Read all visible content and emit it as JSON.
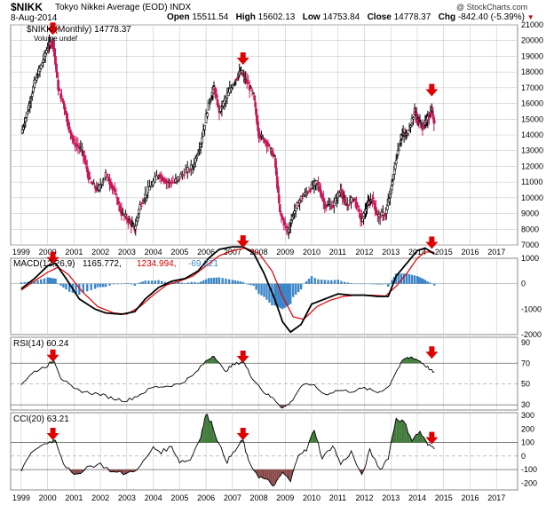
{
  "header": {
    "symbol": "$NIKK",
    "name": "Tokyo Nikkei Average (EOD)",
    "exchange": "INDX",
    "date": "8-Aug-2014",
    "open_label": "Open",
    "open": "15511.54",
    "high_label": "High",
    "high": "15602.13",
    "low_label": "Low",
    "low": "14753.84",
    "close_label": "Close",
    "close": "14778.37",
    "chg_label": "Chg",
    "chg": "-842.40 (-5.39%)",
    "brand": "@ StockCharts.com"
  },
  "colors": {
    "up": "#000000",
    "down": "#c8185a",
    "macd_line": "#000000",
    "signal_line": "#e00000",
    "histogram": "#3a86c8",
    "arrow": "#e00000",
    "rsi_fill": "#3f7a3a",
    "cci_fill_pos": "#3f7a3a",
    "cci_fill_neg": "#8a4a4a",
    "grid": "#c8c8c8"
  },
  "chart_data": [
    {
      "type": "candlestick",
      "legend": "$NIKK (Monthly) 14778.37",
      "legend_volume": "Volume undef",
      "x": [
        1999,
        2000,
        2001,
        2002,
        2003,
        2004,
        2005,
        2006,
        2007,
        2008,
        2009,
        2010,
        2011,
        2012,
        2013,
        2014,
        2015,
        2016,
        2017
      ],
      "ylim": [
        7000,
        21000
      ],
      "yticks": [
        7000,
        8000,
        9000,
        10000,
        11000,
        12000,
        13000,
        14000,
        15000,
        16000,
        17000,
        18000,
        19000,
        20000,
        21000
      ],
      "close": [
        [
          1999.0,
          14100
        ],
        [
          1999.25,
          15600
        ],
        [
          1999.5,
          17300
        ],
        [
          1999.75,
          18400
        ],
        [
          2000.0,
          19600
        ],
        [
          2000.2,
          20000
        ],
        [
          2000.4,
          17000
        ],
        [
          2000.6,
          16000
        ],
        [
          2000.8,
          14500
        ],
        [
          2001.0,
          13500
        ],
        [
          2001.3,
          13000
        ],
        [
          2001.6,
          11000
        ],
        [
          2001.9,
          10500
        ],
        [
          2002.2,
          11500
        ],
        [
          2002.5,
          10500
        ],
        [
          2002.8,
          9000
        ],
        [
          2003.1,
          8500
        ],
        [
          2003.3,
          8000
        ],
        [
          2003.5,
          9500
        ],
        [
          2003.8,
          10500
        ],
        [
          2004.2,
          11500
        ],
        [
          2004.5,
          11000
        ],
        [
          2004.8,
          11000
        ],
        [
          2005.1,
          11500
        ],
        [
          2005.5,
          12000
        ],
        [
          2005.8,
          13500
        ],
        [
          2006.1,
          16000
        ],
        [
          2006.3,
          17000
        ],
        [
          2006.5,
          15500
        ],
        [
          2006.8,
          16500
        ],
        [
          2007.1,
          17500
        ],
        [
          2007.3,
          18000
        ],
        [
          2007.5,
          17500
        ],
        [
          2007.8,
          16500
        ],
        [
          2008.0,
          14000
        ],
        [
          2008.3,
          13500
        ],
        [
          2008.6,
          12500
        ],
        [
          2008.8,
          9000
        ],
        [
          2009.1,
          7800
        ],
        [
          2009.3,
          9000
        ],
        [
          2009.6,
          10000
        ],
        [
          2009.9,
          10500
        ],
        [
          2010.2,
          11000
        ],
        [
          2010.5,
          9500
        ],
        [
          2010.8,
          9500
        ],
        [
          2011.1,
          10500
        ],
        [
          2011.3,
          9500
        ],
        [
          2011.6,
          10000
        ],
        [
          2011.9,
          8500
        ],
        [
          2012.1,
          9500
        ],
        [
          2012.3,
          10000
        ],
        [
          2012.5,
          8800
        ],
        [
          2012.8,
          9000
        ],
        [
          2013.0,
          10500
        ],
        [
          2013.2,
          12500
        ],
        [
          2013.4,
          14000
        ],
        [
          2013.6,
          14000
        ],
        [
          2013.9,
          15500
        ],
        [
          2014.0,
          15000
        ],
        [
          2014.2,
          14500
        ],
        [
          2014.4,
          15000
        ],
        [
          2014.55,
          15600
        ],
        [
          2014.65,
          14778
        ]
      ],
      "arrows_at": [
        2000.2,
        2007.4,
        2014.55
      ]
    },
    {
      "type": "line",
      "legend": [
        "MACD(12,26,9)",
        "1165.772,",
        "1234.994,",
        "-69.221"
      ],
      "ylim": [
        -2000,
        1000
      ],
      "yticks": [
        -2000,
        -1000,
        0,
        1000
      ],
      "series": [
        {
          "name": "MACD",
          "values": [
            [
              1999.0,
              -200
            ],
            [
              1999.5,
              200
            ],
            [
              2000.0,
              700
            ],
            [
              2000.3,
              800
            ],
            [
              2000.7,
              200
            ],
            [
              2001.2,
              -600
            ],
            [
              2001.8,
              -1000
            ],
            [
              2002.2,
              -1150
            ],
            [
              2002.8,
              -1200
            ],
            [
              2003.3,
              -1100
            ],
            [
              2003.7,
              -600
            ],
            [
              2004.2,
              -150
            ],
            [
              2004.7,
              100
            ],
            [
              2005.2,
              200
            ],
            [
              2005.7,
              500
            ],
            [
              2006.1,
              1000
            ],
            [
              2006.5,
              1350
            ],
            [
              2007.0,
              1450
            ],
            [
              2007.4,
              1450
            ],
            [
              2007.8,
              1200
            ],
            [
              2008.2,
              400
            ],
            [
              2008.6,
              -600
            ],
            [
              2008.9,
              -1500
            ],
            [
              2009.2,
              -1900
            ],
            [
              2009.6,
              -1600
            ],
            [
              2010.0,
              -800
            ],
            [
              2010.5,
              -600
            ],
            [
              2011.0,
              -400
            ],
            [
              2011.5,
              -450
            ],
            [
              2012.0,
              -450
            ],
            [
              2012.5,
              -500
            ],
            [
              2012.9,
              -500
            ],
            [
              2013.2,
              300
            ],
            [
              2013.6,
              800
            ],
            [
              2014.0,
              1300
            ],
            [
              2014.3,
              1400
            ],
            [
              2014.65,
              1166
            ]
          ]
        },
        {
          "name": "Signal",
          "values": [
            [
              1999.0,
              -250
            ],
            [
              1999.5,
              100
            ],
            [
              2000.0,
              450
            ],
            [
              2000.4,
              650
            ],
            [
              2000.8,
              350
            ],
            [
              2001.3,
              -300
            ],
            [
              2001.9,
              -900
            ],
            [
              2002.5,
              -1150
            ],
            [
              2003.0,
              -1200
            ],
            [
              2003.5,
              -900
            ],
            [
              2004.0,
              -450
            ],
            [
              2004.5,
              -50
            ],
            [
              2005.0,
              100
            ],
            [
              2005.5,
              300
            ],
            [
              2006.0,
              700
            ],
            [
              2006.5,
              1100
            ],
            [
              2007.0,
              1300
            ],
            [
              2007.5,
              1400
            ],
            [
              2008.0,
              1200
            ],
            [
              2008.5,
              500
            ],
            [
              2008.9,
              -500
            ],
            [
              2009.3,
              -1300
            ],
            [
              2009.7,
              -1400
            ],
            [
              2010.2,
              -900
            ],
            [
              2010.7,
              -650
            ],
            [
              2011.2,
              -500
            ],
            [
              2011.7,
              -450
            ],
            [
              2012.2,
              -450
            ],
            [
              2012.8,
              -480
            ],
            [
              2013.2,
              -100
            ],
            [
              2013.6,
              400
            ],
            [
              2014.0,
              1000
            ],
            [
              2014.3,
              1250
            ],
            [
              2014.65,
              1235
            ]
          ]
        }
      ],
      "arrows_at": [
        2000.2,
        2007.4,
        2014.55
      ]
    },
    {
      "type": "line",
      "legend": "RSI(14) 60.24",
      "ylim": [
        25,
        95
      ],
      "yticks": [
        30,
        50,
        70,
        90
      ],
      "overbought": 70,
      "oversold": 30,
      "values": [
        [
          1999.0,
          50
        ],
        [
          1999.5,
          62
        ],
        [
          2000.0,
          68
        ],
        [
          2000.25,
          73
        ],
        [
          2000.5,
          56
        ],
        [
          2001.0,
          45
        ],
        [
          2001.5,
          42
        ],
        [
          2002.0,
          40
        ],
        [
          2002.5,
          36
        ],
        [
          2003.0,
          34
        ],
        [
          2003.5,
          40
        ],
        [
          2004.0,
          47
        ],
        [
          2004.5,
          48
        ],
        [
          2005.0,
          50
        ],
        [
          2005.5,
          58
        ],
        [
          2006.0,
          72
        ],
        [
          2006.3,
          78
        ],
        [
          2006.7,
          62
        ],
        [
          2007.0,
          68
        ],
        [
          2007.4,
          72
        ],
        [
          2007.7,
          58
        ],
        [
          2008.2,
          42
        ],
        [
          2008.6,
          35
        ],
        [
          2008.9,
          27
        ],
        [
          2009.2,
          32
        ],
        [
          2009.6,
          48
        ],
        [
          2010.0,
          50
        ],
        [
          2010.5,
          40
        ],
        [
          2011.0,
          44
        ],
        [
          2011.5,
          43
        ],
        [
          2012.0,
          46
        ],
        [
          2012.5,
          42
        ],
        [
          2012.9,
          47
        ],
        [
          2013.2,
          62
        ],
        [
          2013.5,
          74
        ],
        [
          2013.8,
          76
        ],
        [
          2014.1,
          72
        ],
        [
          2014.4,
          66
        ],
        [
          2014.65,
          60.24
        ]
      ],
      "arrows_at": [
        2000.2,
        2007.4,
        2014.55
      ]
    },
    {
      "type": "line",
      "legend": "CCI(20) 63.21",
      "ylim": [
        -250,
        320
      ],
      "yticks": [
        -200,
        -100,
        0,
        100,
        200,
        300
      ],
      "values": [
        [
          1999.0,
          -100
        ],
        [
          1999.5,
          50
        ],
        [
          2000.0,
          100
        ],
        [
          2000.3,
          120
        ],
        [
          2000.6,
          -50
        ],
        [
          2001.0,
          -150
        ],
        [
          2001.5,
          -80
        ],
        [
          2002.0,
          -60
        ],
        [
          2002.5,
          -120
        ],
        [
          2003.0,
          -130
        ],
        [
          2003.5,
          -80
        ],
        [
          2004.0,
          60
        ],
        [
          2004.3,
          30
        ],
        [
          2004.7,
          70
        ],
        [
          2005.0,
          -40
        ],
        [
          2005.4,
          -30
        ],
        [
          2005.8,
          150
        ],
        [
          2006.0,
          310
        ],
        [
          2006.2,
          250
        ],
        [
          2006.5,
          80
        ],
        [
          2006.8,
          -40
        ],
        [
          2007.1,
          40
        ],
        [
          2007.4,
          120
        ],
        [
          2007.6,
          -40
        ],
        [
          2008.0,
          -150
        ],
        [
          2008.3,
          -180
        ],
        [
          2008.6,
          -220
        ],
        [
          2008.9,
          -120
        ],
        [
          2009.2,
          -190
        ],
        [
          2009.5,
          20
        ],
        [
          2009.8,
          40
        ],
        [
          2010.1,
          200
        ],
        [
          2010.4,
          -20
        ],
        [
          2010.8,
          80
        ],
        [
          2011.1,
          -60
        ],
        [
          2011.5,
          30
        ],
        [
          2011.9,
          -150
        ],
        [
          2012.2,
          40
        ],
        [
          2012.6,
          -100
        ],
        [
          2012.9,
          -10
        ],
        [
          2013.2,
          280
        ],
        [
          2013.5,
          250
        ],
        [
          2013.8,
          120
        ],
        [
          2014.1,
          180
        ],
        [
          2014.4,
          80
        ],
        [
          2014.65,
          63.21
        ]
      ],
      "arrows_at": [
        2000.2,
        2007.4,
        2014.55
      ]
    }
  ]
}
